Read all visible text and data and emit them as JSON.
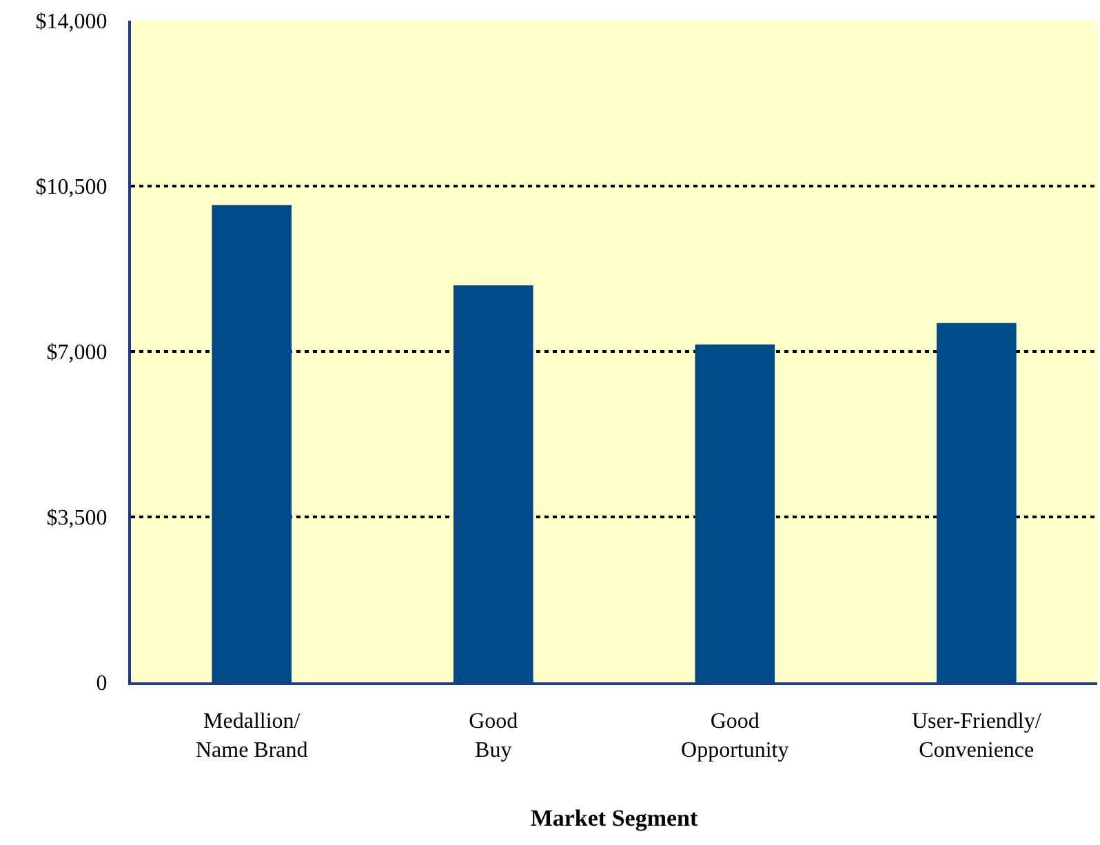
{
  "chart_data": {
    "type": "bar",
    "xlabel": "Market Segment",
    "categories": [
      "Medallion/\nName Brand",
      "Good\nBuy",
      "Good\nOpportunity",
      "User-Friendly/\nConvenience"
    ],
    "values": [
      10100,
      8400,
      7150,
      7600
    ],
    "color": "#004a87",
    "ylim": [
      0,
      14000
    ],
    "yticks": [
      0,
      {
        "value": 3500,
        "label": "$3,500"
      },
      {
        "value": 7000,
        "label": "$7,000"
      },
      {
        "value": 10500,
        "label": "$10,500"
      },
      {
        "value": 14000,
        "label": "$14,000"
      }
    ],
    "grid": "y",
    "line_style": "dotted"
  }
}
